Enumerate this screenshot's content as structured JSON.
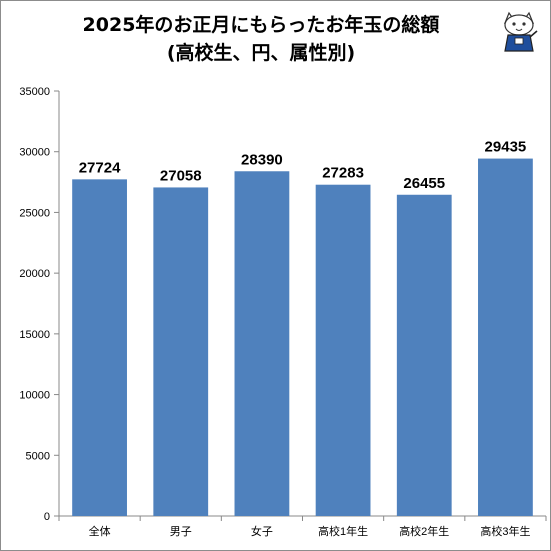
{
  "chart_data": {
    "type": "bar",
    "title_line1": "2025年のお正月にもらったお年玉の総額",
    "title_line2": "(高校生、円、属性別)",
    "categories": [
      "全体",
      "男子",
      "女子",
      "高校1年生",
      "高校2年生",
      "高校3年生"
    ],
    "values": [
      27724,
      27058,
      28390,
      27283,
      26455,
      29435
    ],
    "ylim": [
      0,
      35000
    ],
    "yticks": [
      0,
      5000,
      10000,
      15000,
      20000,
      25000,
      30000,
      35000
    ],
    "xlabel": "",
    "ylabel": "",
    "grid": false,
    "bar_color": "#4f81bd"
  },
  "mascot": {
    "icon": "cat-mascot-icon"
  }
}
